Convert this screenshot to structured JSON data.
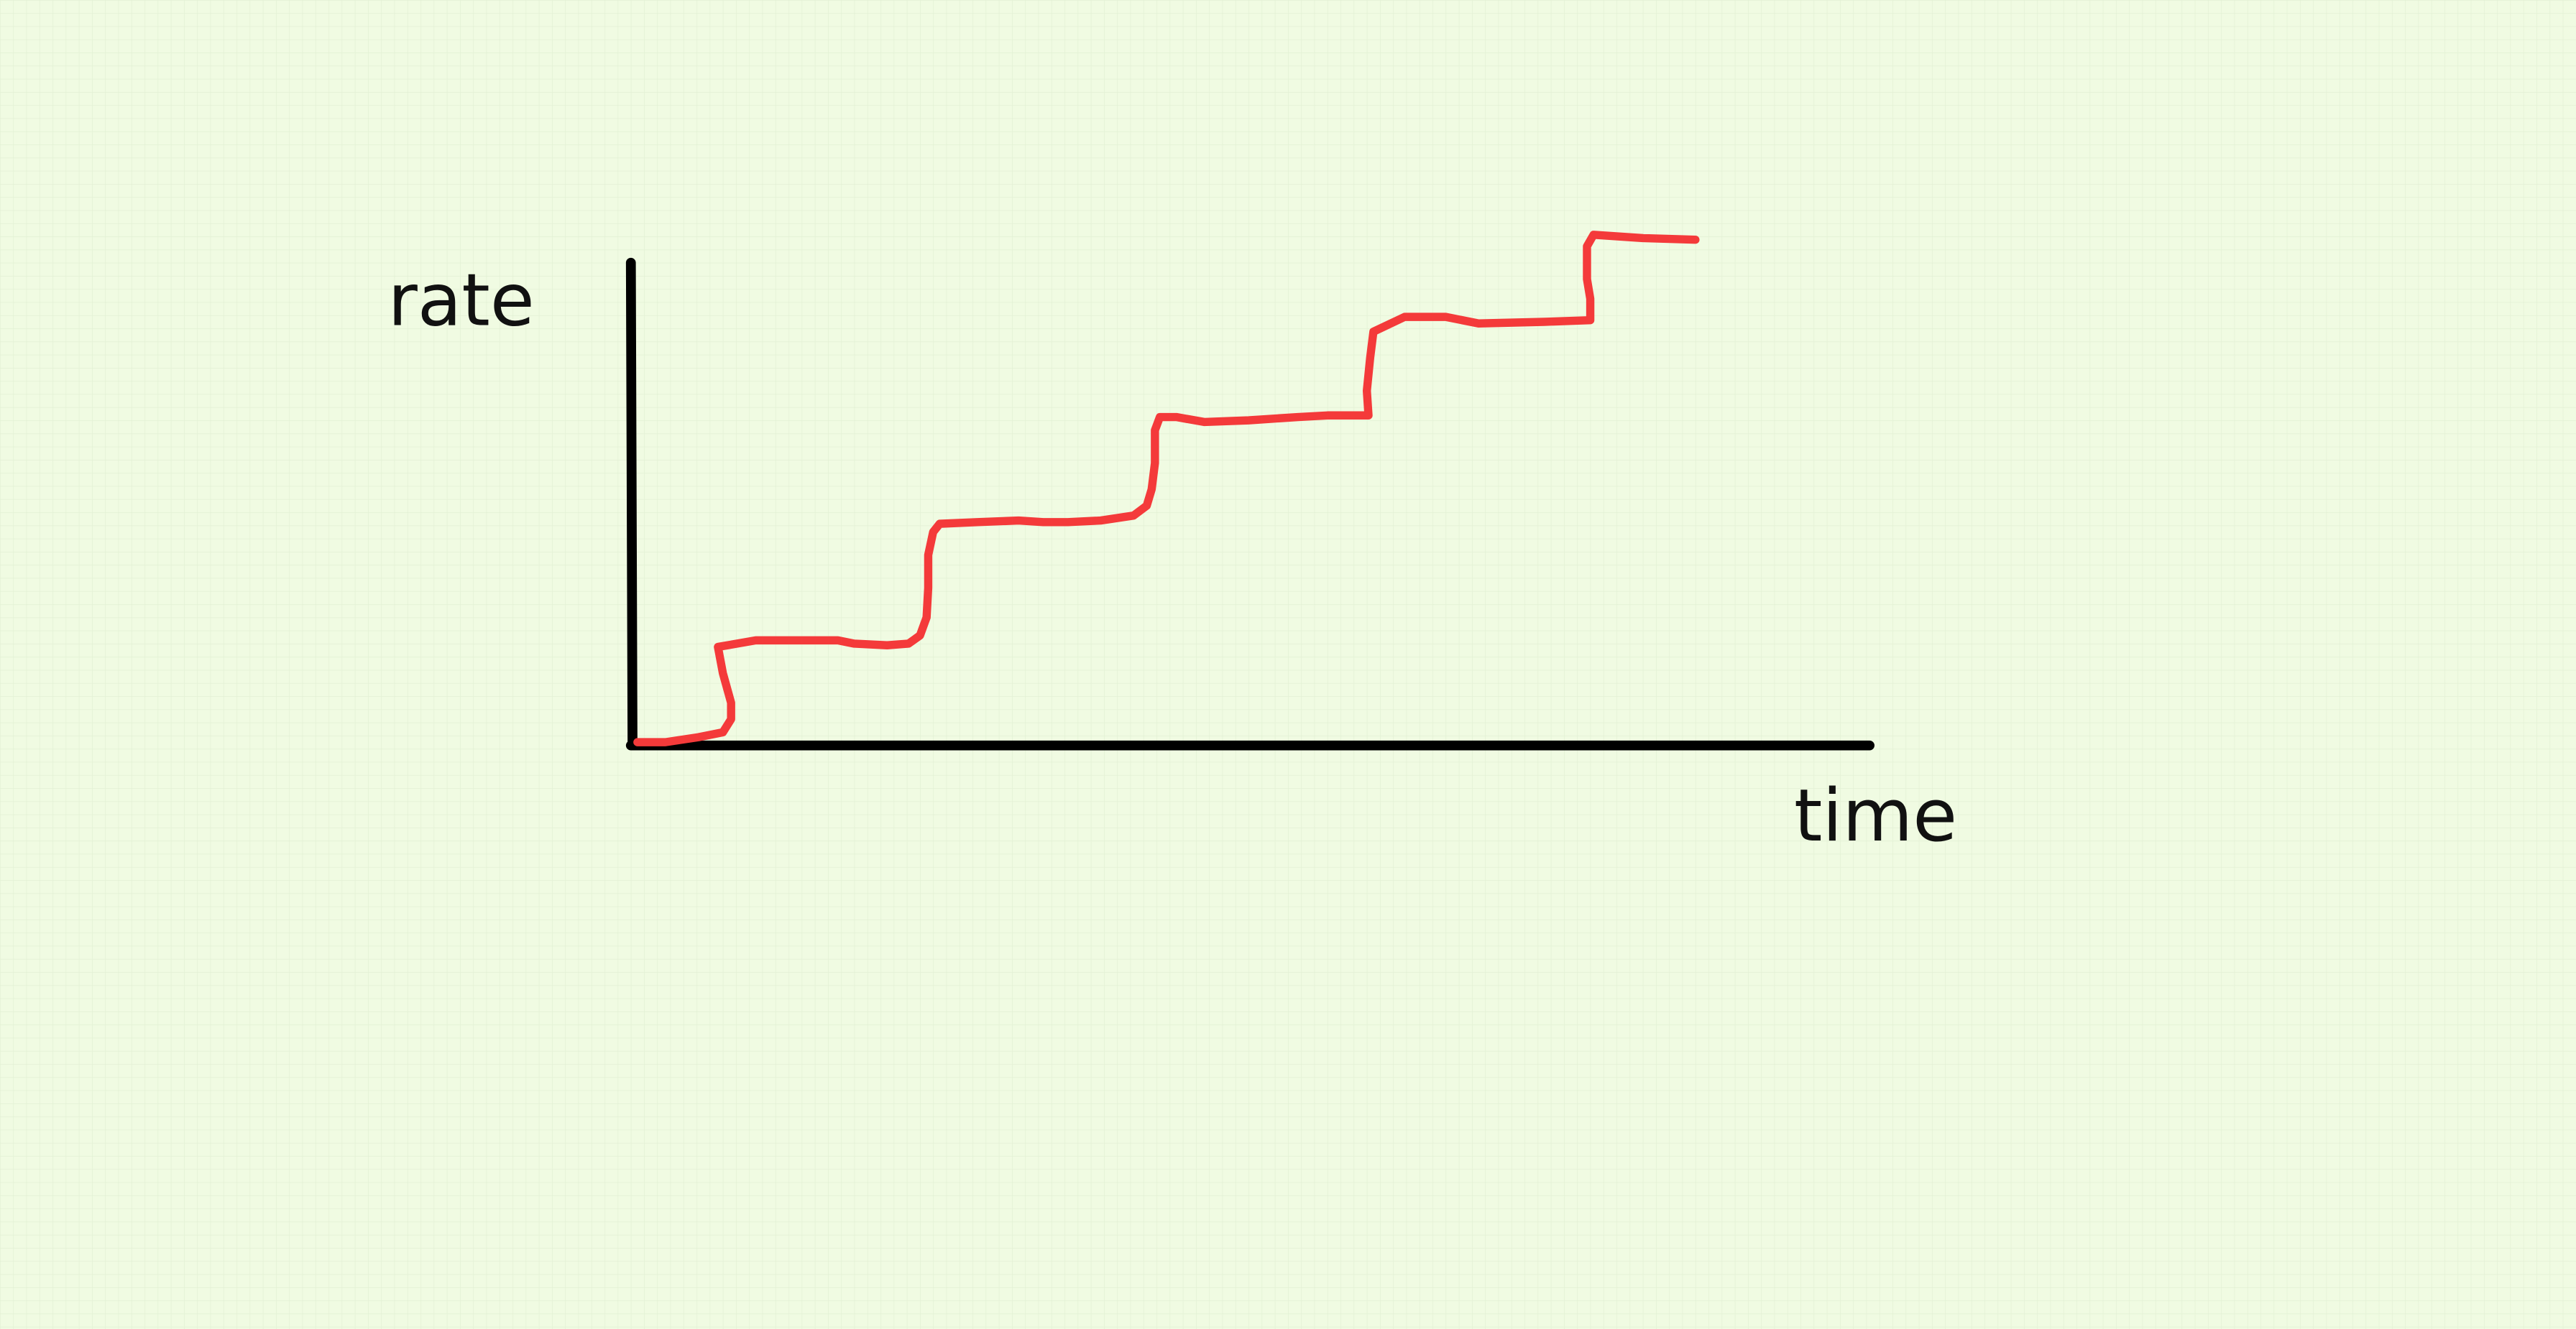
{
  "labels": {
    "y_axis": "rate",
    "x_axis": "time"
  }
}
